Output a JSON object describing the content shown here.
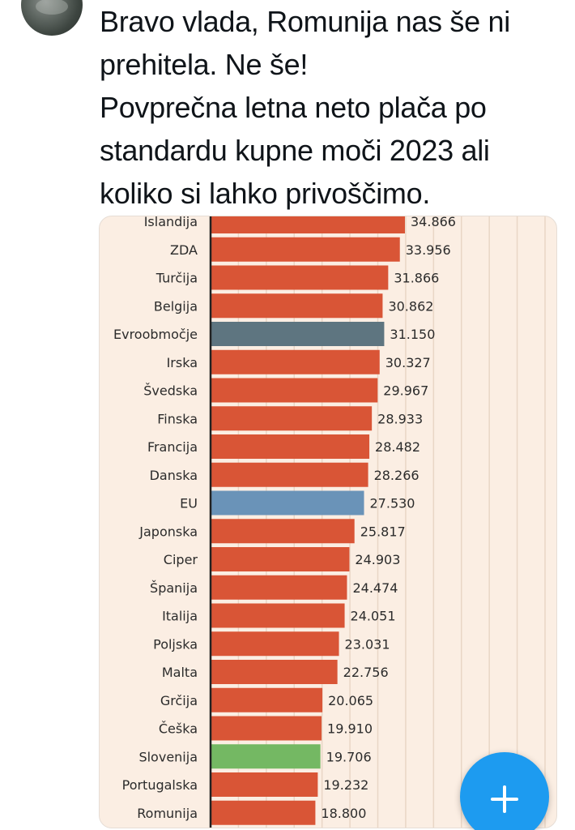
{
  "post": {
    "line1": "Bravo vlada, Romunija nas še ni prehitela. Ne še!",
    "line2": "Povprečna letna neto plača po standardu kupne moči 2023 ali koliko si lahko privoščimo."
  },
  "fab": {
    "icon": "plus-icon",
    "color": "#1d9bf0"
  },
  "colors": {
    "bar_default": "#d95536",
    "bar_eurozone": "#5e7580",
    "bar_eu": "#6a93b8",
    "bar_slovenia": "#74b863",
    "chart_background": "#fbeee3"
  },
  "chart_data": {
    "type": "bar",
    "orientation": "horizontal",
    "categories": [
      "Islandija",
      "ZDA",
      "Turčija",
      "Belgija",
      "Evroobmočje",
      "Irska",
      "Švedska",
      "Finska",
      "Francija",
      "Danska",
      "EU",
      "Japonska",
      "Ciper",
      "Španija",
      "Italija",
      "Poljska",
      "Malta",
      "Grčija",
      "Češka",
      "Slovenija",
      "Portugalska",
      "Romunija"
    ],
    "values": [
      34866,
      33956,
      31866,
      30862,
      31150,
      30327,
      29967,
      28933,
      28482,
      28266,
      27530,
      25817,
      24903,
      24474,
      24051,
      23031,
      22756,
      20065,
      19910,
      19706,
      19232,
      18800
    ],
    "value_labels": [
      "34.866",
      "33.956",
      "31.866",
      "30.862",
      "31.150",
      "30.327",
      "29.967",
      "28.933",
      "28.482",
      "28.266",
      "27.530",
      "25.817",
      "24.903",
      "24.474",
      "24.051",
      "23.031",
      "22.756",
      "20.065",
      "19.910",
      "19.706",
      "19.232",
      "18.800"
    ],
    "highlights": {
      "Evroobmočje": "bar_eurozone",
      "EU": "bar_eu",
      "Slovenija": "bar_slovenia"
    },
    "xlim": [
      0,
      60000
    ],
    "grid": true,
    "title": "",
    "xlabel": "",
    "ylabel": ""
  }
}
